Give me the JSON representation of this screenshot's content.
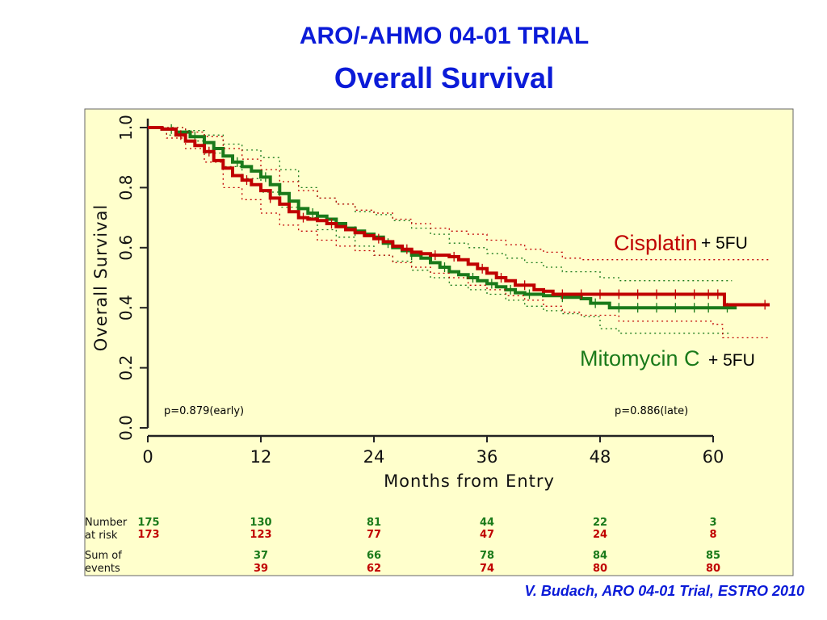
{
  "slide": {
    "title": "ARO/-AHMO 04-01 TRIAL",
    "subtitle": "Overall Survival",
    "citation": "V. Budach, ARO 04-01 Trial, ESTRO 2010"
  },
  "chart_data": {
    "type": "line",
    "subtype": "kaplan-meier",
    "title": "Overall Survival",
    "xlabel": "Months from Entry",
    "ylabel": "Overall Survival",
    "xlim": [
      0,
      67
    ],
    "ylim": [
      0,
      1.0
    ],
    "x_ticks": [
      0,
      12,
      24,
      36,
      48,
      60
    ],
    "x_tick_labels": [
      "0",
      "12",
      "24",
      "36",
      "48",
      "60"
    ],
    "y_ticks": [
      0.0,
      0.2,
      0.4,
      0.6,
      0.8,
      1.0
    ],
    "y_tick_labels": [
      "0.0",
      "0.2",
      "0.4",
      "0.6",
      "0.8",
      "1.0"
    ],
    "colors": {
      "cisplatin": "#c00000",
      "mitomycin": "#1a7a1a",
      "plot_bg": "#ffffcc",
      "axis": "#222222",
      "title": "#0b1bd8"
    },
    "series": [
      {
        "name": "Mitomycin C + 5FU",
        "color": "#1a7a1a",
        "steps": [
          [
            0,
            1.0
          ],
          [
            1.5,
            0.995
          ],
          [
            3,
            0.985
          ],
          [
            4.5,
            0.97
          ],
          [
            6,
            0.95
          ],
          [
            7,
            0.93
          ],
          [
            8,
            0.905
          ],
          [
            9,
            0.885
          ],
          [
            10,
            0.87
          ],
          [
            11,
            0.855
          ],
          [
            12,
            0.835
          ],
          [
            13,
            0.81
          ],
          [
            14,
            0.78
          ],
          [
            15,
            0.755
          ],
          [
            16,
            0.73
          ],
          [
            17,
            0.715
          ],
          [
            18,
            0.705
          ],
          [
            19,
            0.695
          ],
          [
            20,
            0.68
          ],
          [
            21,
            0.665
          ],
          [
            22,
            0.655
          ],
          [
            23,
            0.645
          ],
          [
            24,
            0.635
          ],
          [
            25,
            0.615
          ],
          [
            26,
            0.6
          ],
          [
            27,
            0.59
          ],
          [
            28,
            0.575
          ],
          [
            29,
            0.565
          ],
          [
            30,
            0.55
          ],
          [
            31,
            0.535
          ],
          [
            32,
            0.52
          ],
          [
            33,
            0.51
          ],
          [
            34,
            0.5
          ],
          [
            35,
            0.49
          ],
          [
            36,
            0.48
          ],
          [
            37,
            0.47
          ],
          [
            38,
            0.46
          ],
          [
            39,
            0.45
          ],
          [
            40,
            0.445
          ],
          [
            42,
            0.44
          ],
          [
            44,
            0.435
          ],
          [
            46,
            0.43
          ],
          [
            47,
            0.415
          ],
          [
            49,
            0.4
          ],
          [
            62.5,
            0.4
          ]
        ],
        "ci_upper": [
          [
            0,
            1.0
          ],
          [
            2,
            1.0
          ],
          [
            4,
            0.99
          ],
          [
            6,
            0.975
          ],
          [
            8,
            0.945
          ],
          [
            10,
            0.925
          ],
          [
            12,
            0.9
          ],
          [
            14,
            0.86
          ],
          [
            16,
            0.8
          ],
          [
            18,
            0.765
          ],
          [
            20,
            0.745
          ],
          [
            22,
            0.72
          ],
          [
            24,
            0.71
          ],
          [
            26,
            0.69
          ],
          [
            28,
            0.665
          ],
          [
            30,
            0.645
          ],
          [
            32,
            0.615
          ],
          [
            34,
            0.6
          ],
          [
            36,
            0.58
          ],
          [
            38,
            0.565
          ],
          [
            40,
            0.55
          ],
          [
            42,
            0.535
          ],
          [
            44,
            0.52
          ],
          [
            46,
            0.52
          ],
          [
            48,
            0.5
          ],
          [
            50,
            0.49
          ],
          [
            62,
            0.49
          ]
        ],
        "ci_lower": [
          [
            0,
            1.0
          ],
          [
            2,
            0.975
          ],
          [
            4,
            0.955
          ],
          [
            6,
            0.915
          ],
          [
            8,
            0.87
          ],
          [
            10,
            0.83
          ],
          [
            12,
            0.785
          ],
          [
            14,
            0.735
          ],
          [
            16,
            0.7
          ],
          [
            18,
            0.66
          ],
          [
            20,
            0.635
          ],
          [
            22,
            0.605
          ],
          [
            24,
            0.575
          ],
          [
            26,
            0.555
          ],
          [
            28,
            0.525
          ],
          [
            30,
            0.5
          ],
          [
            32,
            0.475
          ],
          [
            34,
            0.46
          ],
          [
            36,
            0.445
          ],
          [
            38,
            0.425
          ],
          [
            40,
            0.405
          ],
          [
            42,
            0.39
          ],
          [
            44,
            0.38
          ],
          [
            46,
            0.37
          ],
          [
            48,
            0.33
          ],
          [
            50,
            0.315
          ],
          [
            62,
            0.315
          ]
        ],
        "censor_x": [
          2.5,
          5,
          9.5,
          12.5,
          15,
          17.5,
          22,
          25.5,
          28,
          31.5,
          34.5,
          36.5,
          38.5,
          40.5,
          44,
          47.5,
          50,
          52,
          54,
          56,
          58,
          59.5,
          61.5
        ]
      },
      {
        "name": "Cisplatin + 5FU",
        "color": "#c00000",
        "steps": [
          [
            0,
            1.0
          ],
          [
            1.5,
            0.995
          ],
          [
            3,
            0.975
          ],
          [
            4,
            0.955
          ],
          [
            5,
            0.94
          ],
          [
            6,
            0.92
          ],
          [
            7,
            0.89
          ],
          [
            8,
            0.865
          ],
          [
            9,
            0.84
          ],
          [
            10,
            0.825
          ],
          [
            11,
            0.81
          ],
          [
            12,
            0.79
          ],
          [
            13,
            0.765
          ],
          [
            14,
            0.745
          ],
          [
            15,
            0.72
          ],
          [
            16,
            0.7
          ],
          [
            17,
            0.695
          ],
          [
            18,
            0.69
          ],
          [
            19,
            0.68
          ],
          [
            20,
            0.67
          ],
          [
            21,
            0.66
          ],
          [
            22,
            0.65
          ],
          [
            23,
            0.64
          ],
          [
            24,
            0.63
          ],
          [
            25,
            0.62
          ],
          [
            26,
            0.605
          ],
          [
            27,
            0.595
          ],
          [
            28,
            0.585
          ],
          [
            29,
            0.58
          ],
          [
            30,
            0.575
          ],
          [
            32,
            0.57
          ],
          [
            33,
            0.56
          ],
          [
            34,
            0.545
          ],
          [
            35,
            0.53
          ],
          [
            36,
            0.515
          ],
          [
            37,
            0.5
          ],
          [
            38,
            0.49
          ],
          [
            39,
            0.475
          ],
          [
            41,
            0.46
          ],
          [
            42,
            0.455
          ],
          [
            43,
            0.445
          ],
          [
            61,
            0.445
          ],
          [
            61.2,
            0.41
          ],
          [
            66,
            0.41
          ]
        ],
        "ci_upper": [
          [
            0,
            1.0
          ],
          [
            2,
            1.0
          ],
          [
            4,
            0.985
          ],
          [
            6,
            0.97
          ],
          [
            8,
            0.93
          ],
          [
            10,
            0.895
          ],
          [
            12,
            0.86
          ],
          [
            14,
            0.82
          ],
          [
            16,
            0.79
          ],
          [
            18,
            0.765
          ],
          [
            20,
            0.745
          ],
          [
            22,
            0.725
          ],
          [
            24,
            0.715
          ],
          [
            26,
            0.695
          ],
          [
            28,
            0.68
          ],
          [
            30,
            0.665
          ],
          [
            32,
            0.655
          ],
          [
            34,
            0.645
          ],
          [
            36,
            0.625
          ],
          [
            38,
            0.61
          ],
          [
            40,
            0.595
          ],
          [
            42,
            0.585
          ],
          [
            44,
            0.565
          ],
          [
            46,
            0.56
          ],
          [
            60,
            0.56
          ],
          [
            62,
            0.56
          ],
          [
            66,
            0.56
          ]
        ],
        "ci_lower": [
          [
            0,
            1.0
          ],
          [
            2,
            0.965
          ],
          [
            4,
            0.93
          ],
          [
            6,
            0.885
          ],
          [
            8,
            0.8
          ],
          [
            10,
            0.76
          ],
          [
            12,
            0.715
          ],
          [
            14,
            0.675
          ],
          [
            16,
            0.655
          ],
          [
            18,
            0.625
          ],
          [
            20,
            0.605
          ],
          [
            22,
            0.59
          ],
          [
            24,
            0.575
          ],
          [
            26,
            0.55
          ],
          [
            28,
            0.535
          ],
          [
            30,
            0.515
          ],
          [
            32,
            0.5
          ],
          [
            34,
            0.475
          ],
          [
            36,
            0.46
          ],
          [
            38,
            0.44
          ],
          [
            40,
            0.425
          ],
          [
            42,
            0.405
          ],
          [
            44,
            0.385
          ],
          [
            46,
            0.375
          ],
          [
            50,
            0.355
          ],
          [
            60,
            0.345
          ],
          [
            61,
            0.3
          ],
          [
            66,
            0.3
          ]
        ],
        "censor_x": [
          3.5,
          6.5,
          10.5,
          13,
          16.5,
          19.5,
          24.5,
          27.5,
          30.5,
          32.5,
          35.5,
          37.5,
          40,
          44,
          46,
          48,
          50,
          52,
          54,
          56,
          58,
          59.5,
          60.5,
          65.5
        ]
      }
    ],
    "legend": [
      {
        "drug": "Cisplatin",
        "suffix": "+ 5FU",
        "color": "#c00000",
        "position": "right-middle"
      },
      {
        "drug": "Mitomycin C",
        "suffix": "+ 5FU",
        "color": "#1a7a1a",
        "position": "right-lower"
      }
    ],
    "annotations": {
      "p_early": "p=0.879(early)",
      "p_late": "p=0.886(late)"
    },
    "risk_table": {
      "number_label": [
        "Number",
        "at risk"
      ],
      "events_label": [
        "Sum of",
        "events"
      ],
      "timepoints": [
        0,
        12,
        24,
        36,
        48,
        60
      ],
      "at_risk": {
        "mitomycin": [
          "175",
          "130",
          "81",
          "44",
          "22",
          "3"
        ],
        "cisplatin": [
          "173",
          "123",
          "77",
          "47",
          "24",
          "8"
        ]
      },
      "events": {
        "mitomycin": [
          "",
          "37",
          "66",
          "78",
          "84",
          "85"
        ],
        "cisplatin": [
          "",
          "39",
          "62",
          "74",
          "80",
          "80"
        ]
      }
    }
  }
}
